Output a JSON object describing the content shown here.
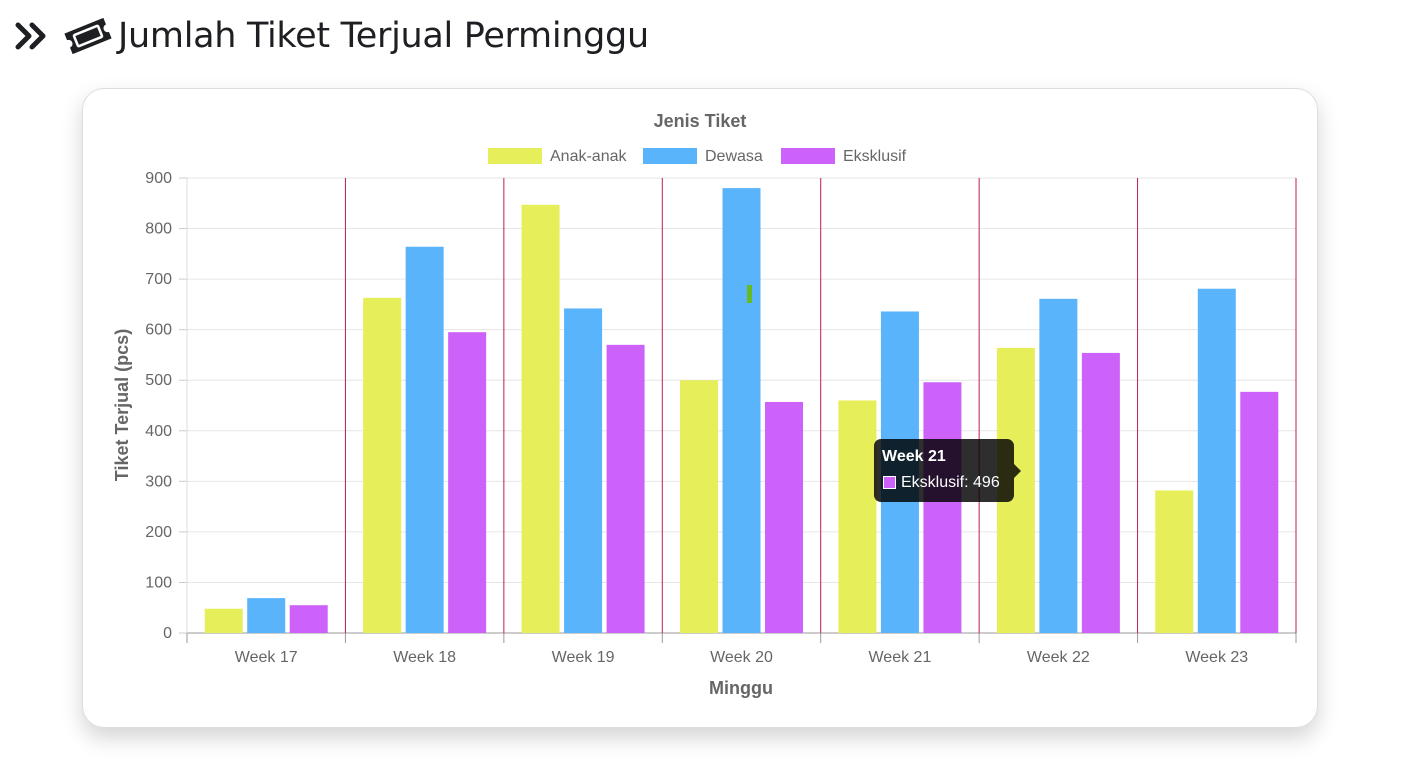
{
  "page": {
    "title": "Jumlah Tiket Terjual Perminggu",
    "icons": [
      "double-chevron-right-icon",
      "ticket-icon"
    ]
  },
  "chart_data": {
    "type": "bar",
    "legend_title": "Jenis Tiket",
    "legend_position": "top",
    "xlabel": "Minggu",
    "ylabel": "Tiket Terjual (pcs)",
    "ylim": [
      0,
      900
    ],
    "yticks": [
      "0",
      "100",
      "200",
      "300",
      "400",
      "500",
      "600",
      "700",
      "800",
      "900"
    ],
    "categories": [
      "Week 17",
      "Week 18",
      "Week 19",
      "Week 20",
      "Week 21",
      "Week 22",
      "Week 23"
    ],
    "grid": true,
    "series": [
      {
        "name": "Anak-anak",
        "color": "#e6ee59",
        "values": [
          48,
          663,
          847,
          500,
          460,
          564,
          282
        ]
      },
      {
        "name": "Dewasa",
        "color": "#5ab4fb",
        "values": [
          69,
          764,
          642,
          880,
          636,
          661,
          681
        ]
      },
      {
        "name": "Eksklusif",
        "color": "#cc62f9",
        "values": [
          55,
          595,
          570,
          457,
          496,
          554,
          477
        ]
      }
    ],
    "category_divider_color": "#c2185b",
    "tooltip": {
      "title": "Week 21",
      "label": "Eksklusif: 496",
      "series_color": "#cc62f9"
    }
  }
}
